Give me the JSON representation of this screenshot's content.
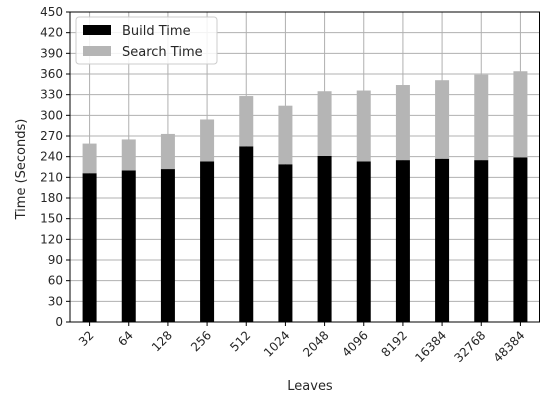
{
  "chart_data": {
    "type": "bar",
    "stacked": true,
    "categories": [
      "32",
      "64",
      "128",
      "256",
      "512",
      "1024",
      "2048",
      "4096",
      "8192",
      "16384",
      "32768",
      "48384"
    ],
    "series": [
      {
        "name": "Build Time",
        "color": "#000000",
        "values": [
          216,
          220,
          222,
          233,
          255,
          229,
          241,
          233,
          235,
          237,
          235,
          239
        ]
      },
      {
        "name": "Search Time",
        "color": "#b5b5b5",
        "values": [
          43,
          45,
          51,
          61,
          73,
          85,
          94,
          103,
          109,
          114,
          124,
          125
        ]
      }
    ],
    "xlabel": "Leaves",
    "ylabel": "Time (Seconds)",
    "ylim": [
      0,
      450
    ],
    "yticks": [
      0,
      30,
      60,
      90,
      120,
      150,
      180,
      210,
      240,
      270,
      300,
      330,
      360,
      390,
      420,
      450
    ],
    "grid": true,
    "legend_position": "top-left"
  }
}
